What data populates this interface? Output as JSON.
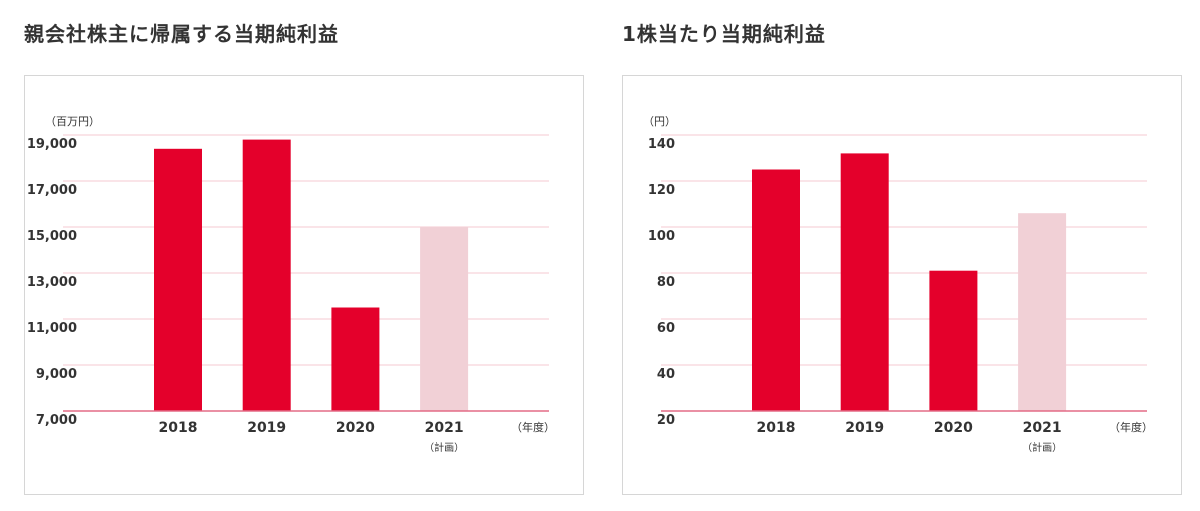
{
  "chart_data": [
    {
      "type": "bar",
      "title": "親会社株主に帰属する当期純利益",
      "unit": "（百万円）",
      "x_unit": "（年度）",
      "categories": [
        "2018",
        "2019",
        "2020",
        "2021"
      ],
      "category_notes": [
        "",
        "",
        "",
        "（計画）"
      ],
      "values": [
        18400,
        18800,
        11500,
        15000
      ],
      "bar_colors": [
        "#e4002b",
        "#e4002b",
        "#e4002b",
        "#f1d0d6"
      ],
      "ylim": [
        7000,
        19500
      ],
      "yticks": [
        7000,
        9000,
        11000,
        13000,
        15000,
        17000,
        19000
      ],
      "ytick_labels": [
        "7,000",
        "9,000",
        "11,000",
        "13,000",
        "15,000",
        "17,000",
        "19,000"
      ],
      "grid": true,
      "colors": {
        "bar": "#e4002b",
        "plan_bar": "#f1d0d6",
        "grid": "#f5c9d0",
        "baseline": "#e36b86"
      }
    },
    {
      "type": "bar",
      "title": "1株当たり当期純利益",
      "unit": "（円）",
      "x_unit": "（年度）",
      "categories": [
        "2018",
        "2019",
        "2020",
        "2021"
      ],
      "category_notes": [
        "",
        "",
        "",
        "（計画）"
      ],
      "values": [
        125,
        132,
        81,
        106
      ],
      "bar_colors": [
        "#e4002b",
        "#e4002b",
        "#e4002b",
        "#f1d0d6"
      ],
      "ylim": [
        20,
        145
      ],
      "yticks": [
        20,
        40,
        60,
        80,
        100,
        120,
        140
      ],
      "ytick_labels": [
        "20",
        "40",
        "60",
        "80",
        "100",
        "120",
        "140"
      ],
      "grid": true,
      "colors": {
        "bar": "#e4002b",
        "plan_bar": "#f1d0d6",
        "grid": "#f5c9d0",
        "baseline": "#e36b86"
      }
    }
  ]
}
